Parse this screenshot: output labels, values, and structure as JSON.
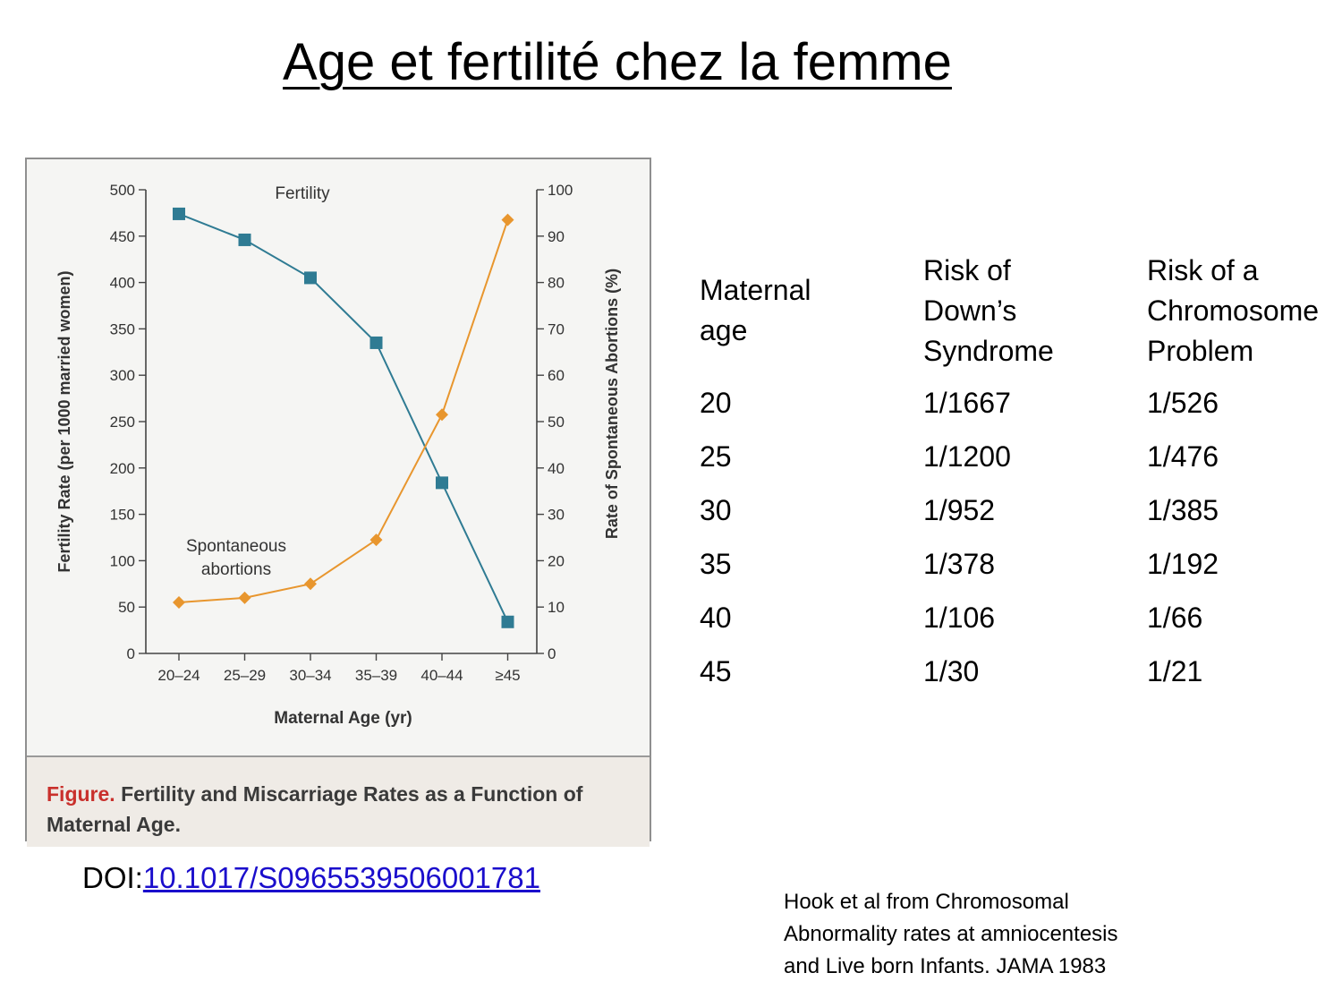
{
  "title": "Age et fertilité chez la femme",
  "figure": {
    "caption_label": "Figure.",
    "caption_text": "Fertility and Miscarriage Rates as a Function of Maternal Age."
  },
  "chart_data": {
    "type": "line",
    "categories": [
      "20–24",
      "25–29",
      "30–34",
      "35–39",
      "40–44",
      "≥45"
    ],
    "xlabel": "Maternal Age (yr)",
    "ylabel": "Fertility Rate (per 1000 married women)",
    "y2label": "Rate of Spontaneous Abortions (%)",
    "ylim": [
      0,
      500
    ],
    "y2lim": [
      0,
      100
    ],
    "yticks": [
      0,
      50,
      100,
      150,
      200,
      250,
      300,
      350,
      400,
      450,
      500
    ],
    "y2ticks": [
      0,
      10,
      20,
      30,
      40,
      50,
      60,
      70,
      80,
      90,
      100
    ],
    "series": [
      {
        "name": "Fertility",
        "axis": "left",
        "color": "#2f7b93",
        "marker": "square",
        "values": [
          474,
          446,
          405,
          335,
          184,
          34
        ]
      },
      {
        "name": "Spontaneous abortions",
        "axis": "right",
        "color": "#e8962e",
        "marker": "diamond",
        "values": [
          11,
          12,
          15,
          24.5,
          51.5,
          93.5
        ]
      }
    ],
    "annotations": [
      {
        "text": "Fertility",
        "series": "Fertility"
      },
      {
        "text": "Spontaneous\nabortions",
        "series": "Spontaneous abortions"
      }
    ],
    "grid": false
  },
  "doi": {
    "prefix": "DOI:",
    "link_text": "10.1017/S0965539506001781"
  },
  "table": {
    "headers": [
      [
        "Maternal",
        "age"
      ],
      [
        "Risk of",
        "Down’s",
        "Syndrome"
      ],
      [
        "Risk of a",
        "Chromosome",
        "Problem"
      ]
    ],
    "rows": [
      [
        "20",
        "1/1667",
        "1/526"
      ],
      [
        "25",
        "1/1200",
        "1/476"
      ],
      [
        "30",
        "1/952",
        "1/385"
      ],
      [
        "35",
        "1/378",
        "1/192"
      ],
      [
        "40",
        "1/106",
        "1/66"
      ],
      [
        "45",
        "1/30",
        "1/21"
      ]
    ]
  },
  "reference": [
    "Hook et al from Chromosomal",
    "Abnormality rates at amniocentesis",
    "and Live born Infants. JAMA 1983"
  ]
}
